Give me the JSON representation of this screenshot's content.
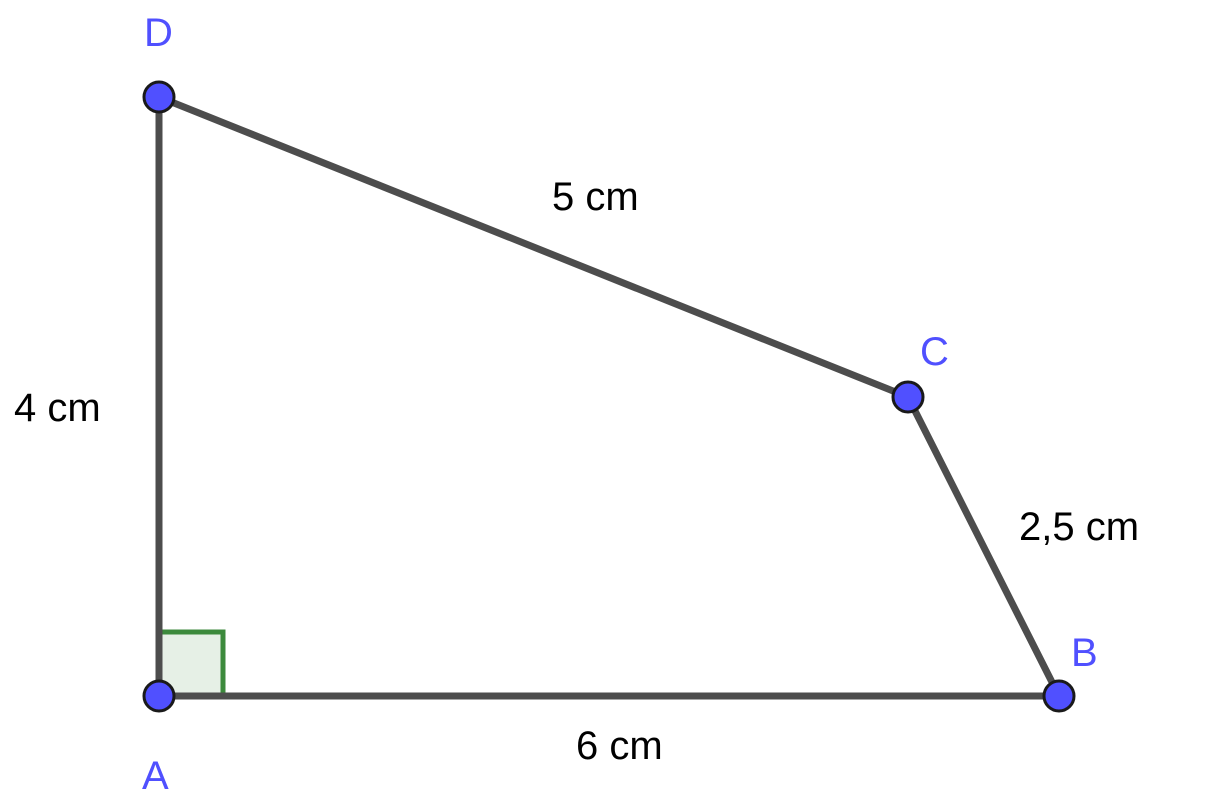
{
  "figure": {
    "vertices": {
      "A": "A",
      "B": "B",
      "C": "C",
      "D": "D"
    },
    "lengths": {
      "AB": "6 cm",
      "BC": "2,5 cm",
      "CD": "5 cm",
      "DA": "4 cm"
    },
    "right_angle_at": "A",
    "colors": {
      "edge": "#4d4d4d",
      "vertex_fill": "#5050ff",
      "vertex_label": "#5050ff",
      "length_label": "#000000",
      "right_angle_fill": "#e6f0e6",
      "right_angle_stroke": "#3c8a3c"
    }
  }
}
